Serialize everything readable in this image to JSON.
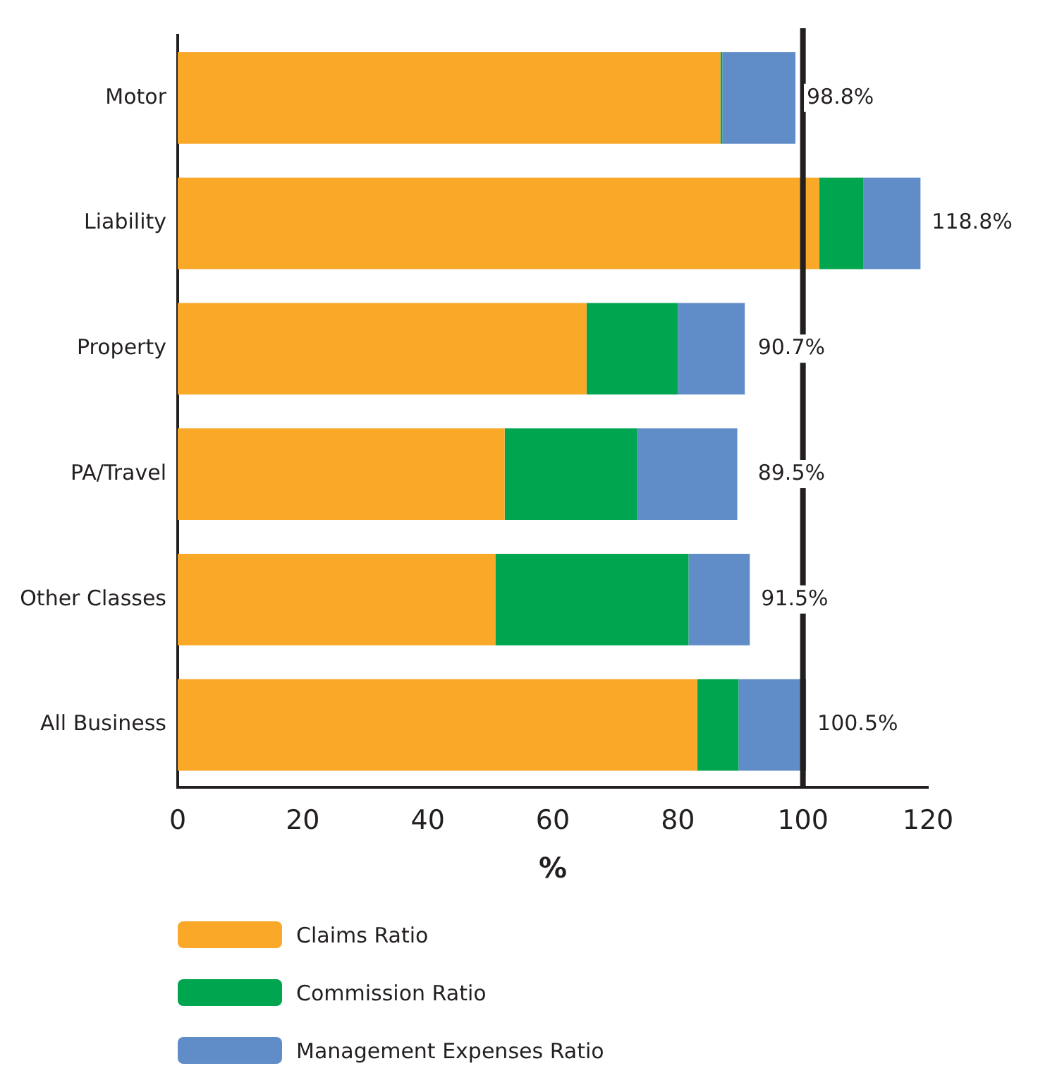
{
  "chart_data": {
    "type": "bar",
    "orientation": "horizontal",
    "stacked": true,
    "xlabel": "%",
    "categories": [
      "Motor",
      "Liability",
      "Property",
      "PA/Travel",
      "Other Classes",
      "All Business"
    ],
    "series": [
      {
        "name": "Claims Ratio",
        "color": "#f9a828",
        "values": [
          86.8,
          102.6,
          65.4,
          52.3,
          50.8,
          83.1
        ]
      },
      {
        "name": "Commission Ratio",
        "color": "#00a54f",
        "values": [
          0.3,
          7.1,
          14.6,
          21.2,
          30.9,
          6.6
        ]
      },
      {
        "name": "Management Expenses Ratio",
        "color": "#608dc8",
        "values": [
          11.7,
          9.1,
          10.7,
          16.0,
          9.8,
          10.8
        ]
      }
    ],
    "totals": [
      "98.8%",
      "118.8%",
      "90.7%",
      "89.5%",
      "91.5%",
      "100.5%"
    ],
    "xlim": [
      0,
      120
    ],
    "xticks": [
      0,
      20,
      40,
      60,
      80,
      100,
      120
    ],
    "ref_lines": [
      {
        "axis": "x",
        "value": 100,
        "color": "#231f20"
      }
    ],
    "grid": false,
    "legend": "bottom"
  }
}
